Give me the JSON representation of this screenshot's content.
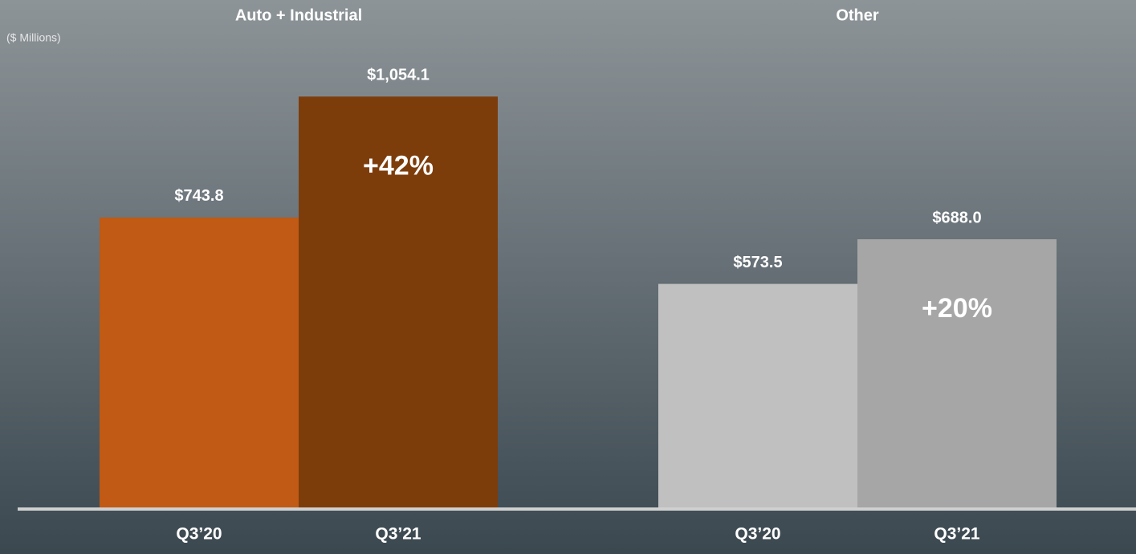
{
  "chart_data": [
    {
      "type": "bar",
      "title": "Auto + Industrial",
      "ylabel": "($ Millions)",
      "categories": [
        "Q3’20",
        "Q3’21"
      ],
      "values": [
        743.8,
        1054.1
      ],
      "value_labels": [
        "$743.8",
        "$1,054.1"
      ],
      "colors": [
        "#c05a14",
        "#7d3d0b"
      ],
      "annotation": "+42%",
      "ylim": [
        0,
        1100
      ]
    },
    {
      "type": "bar",
      "title": "Other",
      "categories": [
        "Q3’20",
        "Q3’21"
      ],
      "values": [
        573.5,
        688.0
      ],
      "value_labels": [
        "$573.5",
        "$688.0"
      ],
      "colors": [
        "#c0c0c0",
        "#a6a6a6"
      ],
      "annotation": "+20%",
      "ylim": [
        0,
        1100
      ]
    }
  ]
}
